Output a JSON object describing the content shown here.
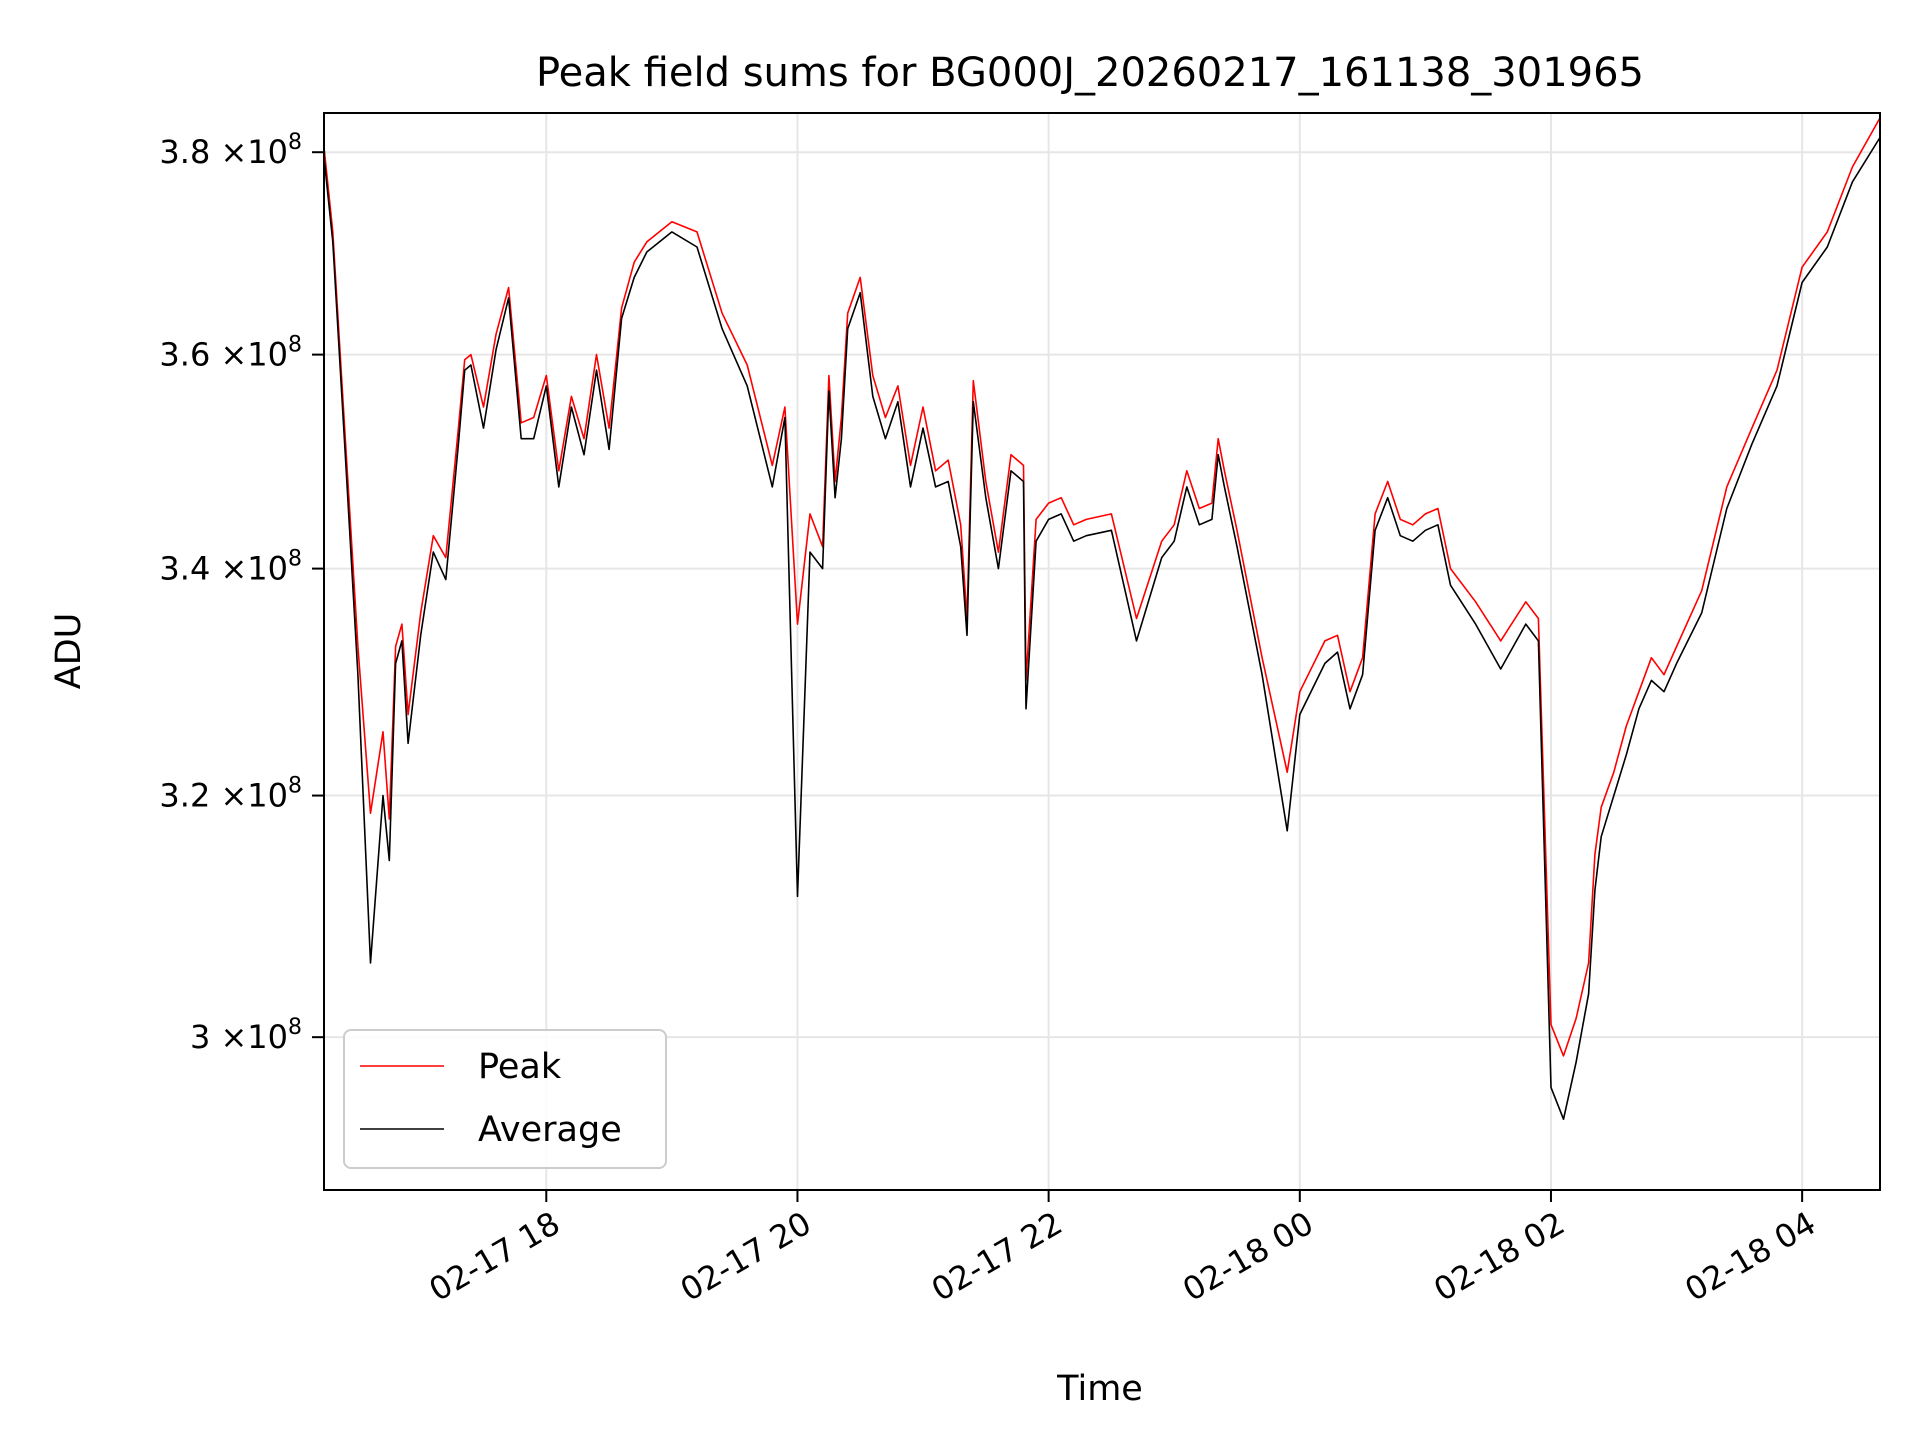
{
  "chart_data": {
    "type": "line",
    "title": "Peak field sums for BG000J_20260217_161138_301965",
    "xlabel": "Time",
    "ylabel": "ADU",
    "x_unit": "hours since 2026-02-17 16:00",
    "xlim": [
      16.23,
      28.62
    ],
    "ylim": [
      288000000,
      384000000
    ],
    "y_scale": "log",
    "grid": true,
    "legend_position": "lower-left",
    "xticks": [
      {
        "value": 18,
        "label": "02-17 18"
      },
      {
        "value": 20,
        "label": "02-17 20"
      },
      {
        "value": 22,
        "label": "02-17 22"
      },
      {
        "value": 24,
        "label": "02-18 00"
      },
      {
        "value": 26,
        "label": "02-18 02"
      },
      {
        "value": 28,
        "label": "02-18 04"
      }
    ],
    "yticks": [
      {
        "value": 300000000,
        "mantissa": "3",
        "exponent": "8"
      },
      {
        "value": 320000000,
        "mantissa": "3.2",
        "exponent": "8"
      },
      {
        "value": 340000000,
        "mantissa": "3.4",
        "exponent": "8"
      },
      {
        "value": 360000000,
        "mantissa": "3.6",
        "exponent": "8"
      },
      {
        "value": 380000000,
        "mantissa": "3.8",
        "exponent": "8"
      }
    ],
    "y_tick_format": "×10",
    "series": [
      {
        "name": "Peak",
        "color": "#ff0000",
        "x": [
          16.23,
          16.3,
          16.4,
          16.5,
          16.6,
          16.7,
          16.75,
          16.8,
          16.85,
          16.9,
          17.0,
          17.1,
          17.2,
          17.3,
          17.35,
          17.4,
          17.5,
          17.6,
          17.7,
          17.8,
          17.9,
          18.0,
          18.1,
          18.2,
          18.3,
          18.4,
          18.5,
          18.6,
          18.7,
          18.8,
          19.0,
          19.2,
          19.4,
          19.6,
          19.8,
          19.9,
          20.0,
          20.1,
          20.2,
          20.25,
          20.3,
          20.35,
          20.4,
          20.5,
          20.6,
          20.7,
          20.8,
          20.9,
          21.0,
          21.1,
          21.2,
          21.3,
          21.35,
          21.4,
          21.5,
          21.6,
          21.7,
          21.8,
          21.82,
          21.9,
          22.0,
          22.1,
          22.2,
          22.3,
          22.5,
          22.7,
          22.9,
          23.0,
          23.1,
          23.2,
          23.3,
          23.35,
          23.4,
          23.5,
          23.7,
          23.9,
          24.0,
          24.2,
          24.3,
          24.4,
          24.5,
          24.6,
          24.7,
          24.8,
          24.9,
          25.0,
          25.1,
          25.2,
          25.4,
          25.6,
          25.8,
          25.9,
          26.0,
          26.1,
          26.2,
          26.3,
          26.35,
          26.4,
          26.5,
          26.6,
          26.7,
          26.8,
          26.9,
          27.0,
          27.2,
          27.4,
          27.6,
          27.8,
          28.0,
          28.2,
          28.4,
          28.62
        ],
        "values": [
          380500000,
          372000000,
          352000000,
          333000000,
          318500000,
          325500000,
          318000000,
          333000000,
          335000000,
          327000000,
          336000000,
          343000000,
          341000000,
          353000000,
          359500000,
          360000000,
          355000000,
          362000000,
          366500000,
          353500000,
          354000000,
          358000000,
          349000000,
          356000000,
          352000000,
          360000000,
          353000000,
          364500000,
          369000000,
          371000000,
          373000000,
          372000000,
          364000000,
          359000000,
          349500000,
          355000000,
          335000000,
          345000000,
          342000000,
          358000000,
          348000000,
          354000000,
          364000000,
          367500000,
          358000000,
          354000000,
          357000000,
          349500000,
          355000000,
          349000000,
          350000000,
          344000000,
          335500000,
          357500000,
          348000000,
          341500000,
          350500000,
          349500000,
          330000000,
          344500000,
          346000000,
          346500000,
          344000000,
          344500000,
          345000000,
          335500000,
          342500000,
          344000000,
          349000000,
          345500000,
          346000000,
          352000000,
          349000000,
          343500000,
          332000000,
          322000000,
          329000000,
          333500000,
          334000000,
          329000000,
          332000000,
          345000000,
          348000000,
          344500000,
          344000000,
          345000000,
          345500000,
          340000000,
          337000000,
          333500000,
          337000000,
          335500000,
          301000000,
          298500000,
          301500000,
          306000000,
          315000000,
          319000000,
          322000000,
          326000000,
          329000000,
          332000000,
          330500000,
          333000000,
          338000000,
          347500000,
          353000000,
          358500000,
          368500000,
          372000000,
          378500000,
          383500000
        ]
      },
      {
        "name": "Average",
        "color": "#000000",
        "x": [
          16.23,
          16.3,
          16.4,
          16.5,
          16.6,
          16.7,
          16.75,
          16.8,
          16.85,
          16.9,
          17.0,
          17.1,
          17.2,
          17.3,
          17.35,
          17.4,
          17.5,
          17.6,
          17.7,
          17.8,
          17.9,
          18.0,
          18.1,
          18.2,
          18.3,
          18.4,
          18.5,
          18.6,
          18.7,
          18.8,
          19.0,
          19.2,
          19.4,
          19.6,
          19.8,
          19.9,
          20.0,
          20.1,
          20.2,
          20.25,
          20.3,
          20.35,
          20.4,
          20.5,
          20.6,
          20.7,
          20.8,
          20.9,
          21.0,
          21.1,
          21.2,
          21.3,
          21.35,
          21.4,
          21.5,
          21.6,
          21.7,
          21.8,
          21.82,
          21.9,
          22.0,
          22.1,
          22.2,
          22.3,
          22.5,
          22.7,
          22.9,
          23.0,
          23.1,
          23.2,
          23.3,
          23.35,
          23.4,
          23.5,
          23.7,
          23.9,
          24.0,
          24.2,
          24.3,
          24.4,
          24.5,
          24.6,
          24.7,
          24.8,
          24.9,
          25.0,
          25.1,
          25.2,
          25.4,
          25.6,
          25.8,
          25.9,
          26.0,
          26.1,
          26.2,
          26.3,
          26.35,
          26.4,
          26.5,
          26.6,
          26.7,
          26.8,
          26.9,
          27.0,
          27.2,
          27.4,
          27.6,
          27.8,
          28.0,
          28.2,
          28.4,
          28.62
        ],
        "values": [
          379500000,
          371000000,
          350500000,
          330500000,
          306000000,
          320000000,
          314500000,
          331500000,
          333500000,
          324500000,
          334000000,
          341500000,
          339000000,
          351500000,
          358500000,
          359000000,
          353000000,
          360500000,
          365500000,
          352000000,
          352000000,
          357000000,
          347500000,
          355000000,
          350500000,
          358500000,
          351000000,
          363500000,
          367500000,
          370000000,
          372000000,
          370500000,
          362500000,
          357000000,
          347500000,
          354000000,
          311500000,
          341500000,
          340000000,
          356500000,
          346500000,
          352000000,
          362500000,
          366000000,
          356000000,
          352000000,
          355500000,
          347500000,
          353000000,
          347500000,
          348000000,
          342000000,
          334000000,
          355500000,
          346500000,
          340000000,
          349000000,
          348000000,
          327500000,
          342500000,
          344500000,
          345000000,
          342500000,
          343000000,
          343500000,
          333500000,
          341000000,
          342500000,
          347500000,
          344000000,
          344500000,
          350500000,
          347500000,
          342000000,
          330500000,
          317000000,
          327000000,
          331500000,
          332500000,
          327500000,
          330500000,
          343500000,
          346500000,
          343000000,
          342500000,
          343500000,
          344000000,
          338500000,
          335000000,
          331000000,
          335000000,
          333500000,
          296000000,
          293500000,
          298000000,
          303500000,
          312000000,
          316500000,
          320000000,
          323500000,
          327500000,
          330000000,
          329000000,
          331500000,
          336000000,
          345500000,
          351500000,
          357000000,
          367000000,
          370500000,
          377000000,
          381500000
        ]
      }
    ]
  }
}
